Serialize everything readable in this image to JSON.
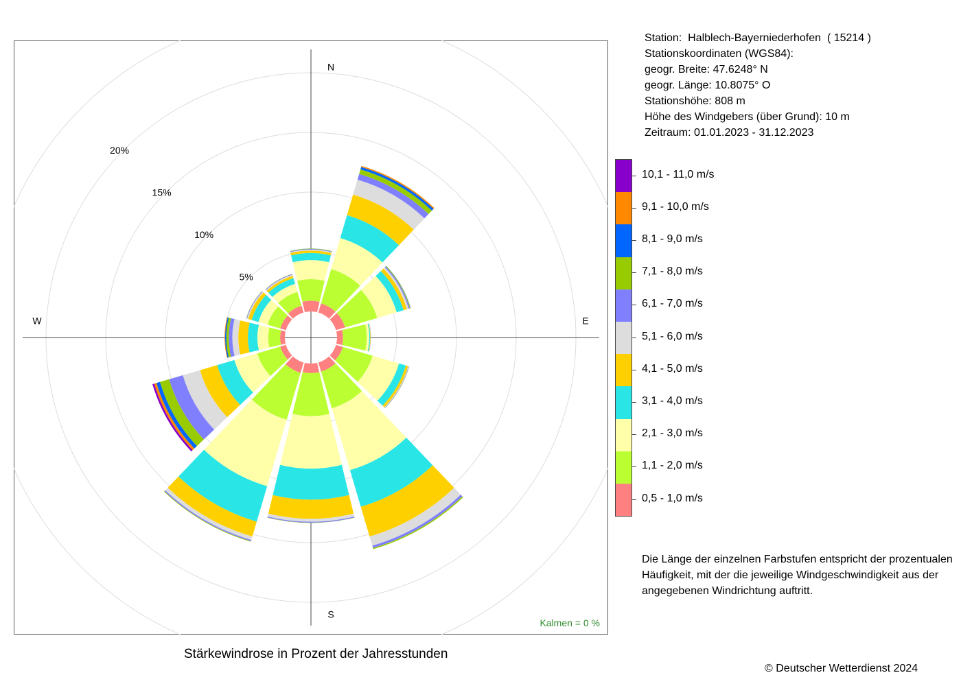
{
  "station": {
    "line1": "Station:  Halblech-Bayerniederhofen  ( 15214 )",
    "line2": "Stationskoordinaten (WGS84):",
    "line3": "geogr. Breite: 47.6248° N",
    "line4": "geogr. Länge: 10.8075° O",
    "line5": "Stationshöhe: 808 m",
    "line6": "Höhe des Windgebers (über Grund): 10 m",
    "line7": "Zeitraum: 01.01.2023 - 31.12.2023"
  },
  "legend": {
    "classes": [
      {
        "label": "10,1 - 11,0 m/s",
        "color": "#8800CC"
      },
      {
        "label": "9,1 - 10,0 m/s",
        "color": "#FF8800"
      },
      {
        "label": "8,1 - 9,0 m/s",
        "color": "#0066FF"
      },
      {
        "label": "7,1 - 8,0 m/s",
        "color": "#99CC00"
      },
      {
        "label": "6,1 - 7,0 m/s",
        "color": "#8080FF"
      },
      {
        "label": "5,1 - 6,0 m/s",
        "color": "#DDDDDD"
      },
      {
        "label": "4,1 - 5,0 m/s",
        "color": "#FFD000"
      },
      {
        "label": "3,1 - 4,0 m/s",
        "color": "#2AE5E5"
      },
      {
        "label": "2,1 - 3,0 m/s",
        "color": "#FFFFAA"
      },
      {
        "label": "1,1 - 2,0 m/s",
        "color": "#BBFF33"
      },
      {
        "label": "0,5 - 1,0 m/s",
        "color": "#FF8080"
      }
    ]
  },
  "explanation": "Die Länge der einzelnen Farbstufen entspricht der prozentualen Häufigkeit, mit der die jeweilige Windgeschwindigkeit aus der angegebenen Windrichtung auftritt.",
  "footer_title": "Stärkewindrose in Prozent der Jahresstunden",
  "copyright": "© Deutscher Wetterdienst  2024",
  "calm_label": "Kalmen  =  0 %",
  "chart_data": {
    "type": "wind-rose",
    "title": "Stärkewindrose in Prozent der Jahresstunden",
    "compass_labels": [
      "N",
      "E",
      "S",
      "W"
    ],
    "radial_ticks": [
      5,
      10,
      15,
      20
    ],
    "radial_tick_labels": [
      "5%",
      "10%",
      "15%",
      "20%"
    ],
    "speed_classes": [
      "0,5 - 1,0 m/s",
      "1,1 - 2,0 m/s",
      "2,1 - 3,0 m/s",
      "3,1 - 4,0 m/s",
      "4,1 - 5,0 m/s",
      "5,1 - 6,0 m/s",
      "6,1 - 7,0 m/s",
      "7,1 - 8,0 m/s",
      "8,1 - 9,0 m/s",
      "9,1 - 10,0 m/s",
      "10,1 - 11,0 m/s"
    ],
    "sectors": [
      {
        "direction": 0,
        "values": [
          0.9,
          1.8,
          1.6,
          0.6,
          0.2,
          0.08,
          0.05,
          0.03,
          0.01,
          0,
          0
        ]
      },
      {
        "direction": 30,
        "values": [
          0.8,
          3.0,
          2.7,
          2.0,
          1.8,
          1.3,
          0.5,
          0.4,
          0.2,
          0.1,
          0
        ]
      },
      {
        "direction": 60,
        "values": [
          0.8,
          2.8,
          1.7,
          0.6,
          0.3,
          0.15,
          0.1,
          0.06,
          0.02,
          0,
          0
        ]
      },
      {
        "direction": 90,
        "values": [
          0.5,
          2.0,
          0.2,
          0.08,
          0.04,
          0.02,
          0.01,
          0,
          0,
          0,
          0
        ]
      },
      {
        "direction": 120,
        "values": [
          0.6,
          2.6,
          2.3,
          0.6,
          0.2,
          0.05,
          0.03,
          0.02,
          0,
          0,
          0
        ]
      },
      {
        "direction": 150,
        "values": [
          0.8,
          3.2,
          5.4,
          3.2,
          2.6,
          0.8,
          0.2,
          0.1,
          0,
          0,
          0
        ]
      },
      {
        "direction": 180,
        "values": [
          0.8,
          3.6,
          4.4,
          2.6,
          1.6,
          0.25,
          0.08,
          0.02,
          0,
          0,
          0
        ]
      },
      {
        "direction": 210,
        "values": [
          0.9,
          4.1,
          5.8,
          3.1,
          1.3,
          0.3,
          0.1,
          0.05,
          0,
          0,
          0
        ]
      },
      {
        "direction": 240,
        "values": [
          0.5,
          2.0,
          2.0,
          1.5,
          1.5,
          1.5,
          1.2,
          0.8,
          0.3,
          0.2,
          0.15
        ]
      },
      {
        "direction": 270,
        "values": [
          0.4,
          1.0,
          0.9,
          0.8,
          0.8,
          0.5,
          0.3,
          0.2,
          0.1,
          0.05,
          0
        ]
      },
      {
        "direction": 300,
        "values": [
          0.5,
          1.1,
          0.8,
          0.6,
          0.3,
          0.1,
          0.05,
          0.02,
          0,
          0,
          0
        ]
      },
      {
        "direction": 330,
        "values": [
          0.6,
          1.2,
          0.7,
          0.5,
          0.2,
          0.1,
          0.05,
          0.02,
          0,
          0,
          0
        ]
      }
    ]
  }
}
